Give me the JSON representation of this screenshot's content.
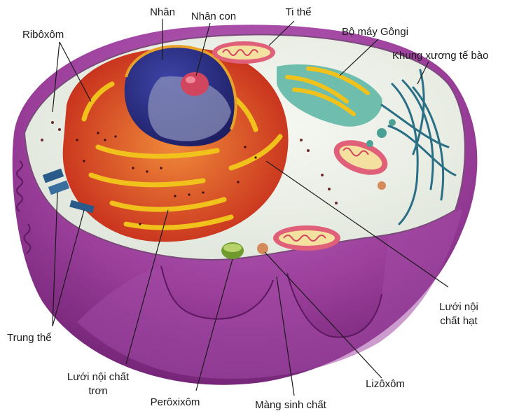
{
  "diagram": {
    "colors": {
      "outer_membrane": "#9b3f9b",
      "outer_membrane_dark": "#6f2172",
      "cytoplasm_top": "#eef1ea",
      "nucleus": "#2c2f86",
      "nucleolus": "#d2455e",
      "rough_er": "#d9371f",
      "er_yellow": "#f2c21c",
      "golgi": "#5fb7a6",
      "mitochondrion": "#e0607a",
      "cytoskeleton": "#2a6f86",
      "peroxisome": "#6f9a2e",
      "leader_line": "#1a1a1a"
    },
    "labels": {
      "nhan": "Nhân",
      "nhan_con": "Nhân con",
      "ti_the": "Ti thể",
      "bo_may_gongi": "Bộ máy Gôngi",
      "khung_xuong": "Khung xương tế bào",
      "ribosom": "Ribôxôm",
      "luoi_noi_chat_hat_1": "Lưới nội",
      "luoi_noi_chat_hat_2": "chất hạt",
      "trung_the": "Trung thể",
      "luoi_noi_chat_tron_1": "Lưới nội chất",
      "luoi_noi_chat_tron_2": "trơn",
      "peroxisom": "Perôxixôm",
      "mang_sinh_chat": "Màng sinh chất",
      "lizosom": "Lizôxôm"
    }
  }
}
